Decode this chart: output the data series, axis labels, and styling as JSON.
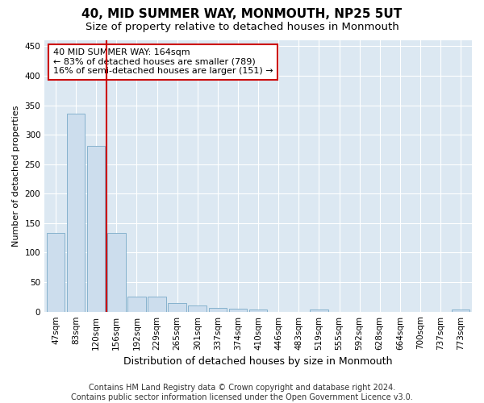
{
  "title": "40, MID SUMMER WAY, MONMOUTH, NP25 5UT",
  "subtitle": "Size of property relative to detached houses in Monmouth",
  "xlabel": "Distribution of detached houses by size in Monmouth",
  "ylabel": "Number of detached properties",
  "categories": [
    "47sqm",
    "83sqm",
    "120sqm",
    "156sqm",
    "192sqm",
    "229sqm",
    "265sqm",
    "301sqm",
    "337sqm",
    "374sqm",
    "410sqm",
    "446sqm",
    "483sqm",
    "519sqm",
    "555sqm",
    "592sqm",
    "628sqm",
    "664sqm",
    "700sqm",
    "737sqm",
    "773sqm"
  ],
  "values": [
    133,
    335,
    281,
    133,
    26,
    26,
    15,
    11,
    7,
    5,
    4,
    0,
    0,
    4,
    0,
    0,
    0,
    0,
    0,
    0,
    4
  ],
  "bar_color": "#ccdded",
  "bar_edge_color": "#7aaac8",
  "vline_x": 3.0,
  "vline_color": "#cc0000",
  "annotation_text": "40 MID SUMMER WAY: 164sqm\n← 83% of detached houses are smaller (789)\n16% of semi-detached houses are larger (151) →",
  "annotation_box_color": "#ffffff",
  "annotation_box_edge_color": "#cc0000",
  "ylim": [
    0,
    460
  ],
  "yticks": [
    0,
    50,
    100,
    150,
    200,
    250,
    300,
    350,
    400,
    450
  ],
  "footer": "Contains HM Land Registry data © Crown copyright and database right 2024.\nContains public sector information licensed under the Open Government Licence v3.0.",
  "bg_color": "#dce8f2",
  "grid_color": "#ffffff",
  "fig_bg_color": "#ffffff",
  "title_fontsize": 11,
  "subtitle_fontsize": 9.5,
  "annotation_fontsize": 8,
  "footer_fontsize": 7,
  "tick_fontsize": 7.5,
  "ylabel_fontsize": 8,
  "xlabel_fontsize": 9
}
